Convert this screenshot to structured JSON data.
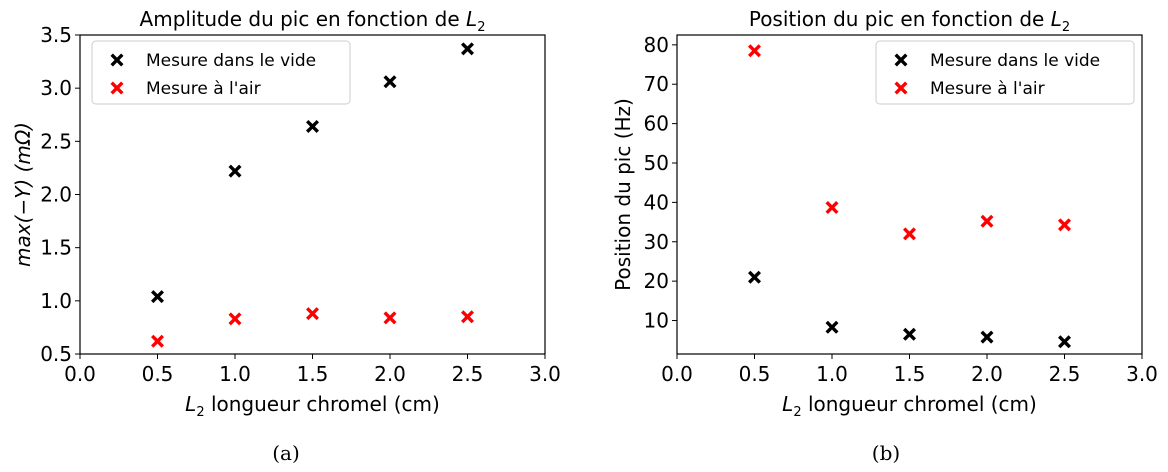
{
  "chart_data": [
    {
      "type": "scatter",
      "title": "Amplitude du pic en fonction de L₂",
      "title_main": "Amplitude du pic en fonction de ",
      "title_var": "L",
      "title_sub": "2",
      "xlabel_var": "L",
      "xlabel_sub": "2",
      "xlabel_rest": " longueur chromel (cm)",
      "ylabel": "max(−Y) (mΩ)",
      "xlim": [
        0.0,
        3.0
      ],
      "ylim": [
        0.5,
        3.5
      ],
      "x_ticks": [
        "0.0",
        "0.5",
        "1.0",
        "1.5",
        "2.0",
        "2.5",
        "3.0"
      ],
      "y_ticks": [
        "0.5",
        "1.0",
        "1.5",
        "2.0",
        "2.5",
        "3.0",
        "3.5"
      ],
      "legend_position": "top-left",
      "caption": "(a)",
      "series": [
        {
          "name": "Mesure dans le vide",
          "color": "#000000",
          "marker": "X",
          "x": [
            0.5,
            1.0,
            1.5,
            2.0,
            2.5
          ],
          "y": [
            1.04,
            2.22,
            2.64,
            3.06,
            3.37
          ]
        },
        {
          "name": "Mesure à l'air",
          "color": "#ff0000",
          "marker": "X",
          "x": [
            0.5,
            1.0,
            1.5,
            2.0,
            2.5
          ],
          "y": [
            0.62,
            0.83,
            0.88,
            0.84,
            0.85
          ]
        }
      ]
    },
    {
      "type": "scatter",
      "title": "Position du pic en fonction de L₂",
      "title_main": "Position du pic en fonction de ",
      "title_var": "L",
      "title_sub": "2",
      "xlabel_var": "L",
      "xlabel_sub": "2",
      "xlabel_rest": " longueur chromel (cm)",
      "ylabel": "Position du pic (Hz)",
      "xlim": [
        0.0,
        3.0
      ],
      "ylim": [
        1.5,
        82.5
      ],
      "x_ticks": [
        "0.0",
        "0.5",
        "1.0",
        "1.5",
        "2.0",
        "2.5",
        "3.0"
      ],
      "y_ticks": [
        "10",
        "20",
        "30",
        "40",
        "50",
        "60",
        "70",
        "80"
      ],
      "legend_position": "top-right",
      "caption": "(b)",
      "series": [
        {
          "name": "Mesure dans le vide",
          "color": "#000000",
          "marker": "X",
          "x": [
            0.5,
            1.0,
            1.5,
            2.0,
            2.5
          ],
          "y": [
            21.0,
            8.3,
            6.5,
            5.8,
            4.6
          ]
        },
        {
          "name": "Mesure à l'air",
          "color": "#ff0000",
          "marker": "X",
          "x": [
            0.5,
            1.0,
            1.5,
            2.0,
            2.5
          ],
          "y": [
            78.5,
            38.7,
            32.0,
            35.2,
            34.3
          ]
        }
      ]
    }
  ]
}
